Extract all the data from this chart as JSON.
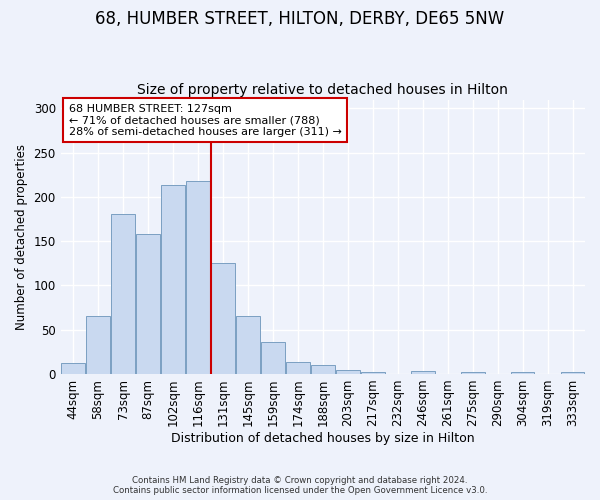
{
  "title": "68, HUMBER STREET, HILTON, DERBY, DE65 5NW",
  "subtitle": "Size of property relative to detached houses in Hilton",
  "xlabel": "Distribution of detached houses by size in Hilton",
  "ylabel": "Number of detached properties",
  "bar_labels": [
    "44sqm",
    "58sqm",
    "73sqm",
    "87sqm",
    "102sqm",
    "116sqm",
    "131sqm",
    "145sqm",
    "159sqm",
    "174sqm",
    "188sqm",
    "203sqm",
    "217sqm",
    "232sqm",
    "246sqm",
    "261sqm",
    "275sqm",
    "290sqm",
    "304sqm",
    "319sqm",
    "333sqm"
  ],
  "bar_heights": [
    12,
    65,
    181,
    158,
    214,
    218,
    125,
    65,
    36,
    13,
    10,
    5,
    2,
    0,
    3,
    0,
    2,
    0,
    2,
    0,
    2
  ],
  "bar_color": "#c9d9f0",
  "bar_edge_color": "#7a9fc2",
  "vline_color": "#cc0000",
  "annotation_title": "68 HUMBER STREET: 127sqm",
  "annotation_line1": "← 71% of detached houses are smaller (788)",
  "annotation_line2": "28% of semi-detached houses are larger (311) →",
  "annotation_box_color": "#ffffff",
  "annotation_box_edge": "#cc0000",
  "ylim": [
    0,
    310
  ],
  "footer1": "Contains HM Land Registry data © Crown copyright and database right 2024.",
  "footer2": "Contains public sector information licensed under the Open Government Licence v3.0.",
  "bg_color": "#eef2fb",
  "title_fontsize": 12,
  "subtitle_fontsize": 10
}
